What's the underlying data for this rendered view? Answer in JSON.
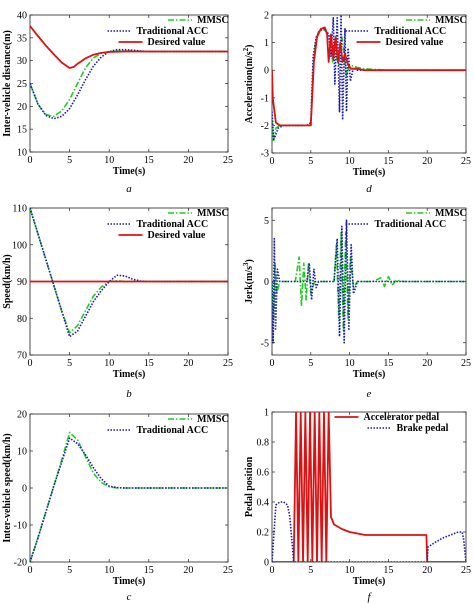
{
  "colors": {
    "mmsc": "#22cc22",
    "traditional": "#1a1aaa",
    "desired": "#dd1111",
    "accelerator": "#dd1111",
    "brake": "#1a1aaa"
  },
  "chart_data": [
    {
      "id": "a",
      "type": "line",
      "caption": "a",
      "xlabel": "Time(s)",
      "ylabel": "Inter-vehicle distance(m)",
      "xlim": [
        0,
        25
      ],
      "ylim": [
        10,
        40
      ],
      "xticks": [
        0,
        5,
        10,
        15,
        20,
        25
      ],
      "yticks": [
        10,
        15,
        20,
        25,
        30,
        35,
        40
      ],
      "legend_pos": "top-right",
      "series": [
        {
          "name": "MMSC",
          "style": "dashdot",
          "color": "#22cc22",
          "x": [
            0,
            1,
            2,
            3,
            4,
            5,
            6,
            7,
            8,
            9,
            10,
            11,
            12,
            13,
            15,
            20,
            25
          ],
          "y": [
            25,
            20.5,
            18.2,
            17.8,
            19,
            21.5,
            25,
            28.4,
            30.6,
            31.6,
            32,
            32.1,
            32.1,
            32.1,
            32,
            32,
            32
          ]
        },
        {
          "name": "Traditional ACC",
          "style": "dotted",
          "color": "#1a1aaa",
          "x": [
            0,
            1,
            2,
            3,
            4,
            5,
            6,
            7,
            8,
            9,
            10,
            11,
            12,
            13,
            14,
            15,
            20,
            25
          ],
          "y": [
            25,
            20.5,
            18,
            17.3,
            17.8,
            19.5,
            22.5,
            25.8,
            28.8,
            30.8,
            32,
            32.4,
            32.4,
            32.3,
            32.1,
            32,
            32,
            32
          ]
        },
        {
          "name": "Desired value",
          "style": "solid",
          "color": "#dd1111",
          "x": [
            0,
            1,
            2,
            3,
            4,
            5,
            5.5,
            6,
            7,
            8,
            9,
            10,
            12,
            15,
            20,
            25
          ],
          "y": [
            37.6,
            35.4,
            33.3,
            31.4,
            29.6,
            28.4,
            28.6,
            29.3,
            30.5,
            31.3,
            31.7,
            31.9,
            32,
            32,
            32,
            32
          ]
        }
      ]
    },
    {
      "id": "b",
      "type": "line",
      "caption": "b",
      "xlabel": "Time(s)",
      "ylabel": "Speed(km/h)",
      "xlim": [
        0,
        25
      ],
      "ylim": [
        70,
        110
      ],
      "xticks": [
        0,
        5,
        10,
        15,
        20,
        25
      ],
      "yticks": [
        70,
        80,
        90,
        100,
        110
      ],
      "legend_pos": "top-right",
      "series": [
        {
          "name": "MMSC",
          "style": "dashdot",
          "color": "#22cc22",
          "x": [
            0,
            1,
            2,
            3,
            4,
            5,
            6,
            7,
            8,
            9,
            10,
            11,
            12,
            15,
            20,
            25
          ],
          "y": [
            110,
            103,
            96,
            89,
            82,
            76,
            78,
            82,
            86,
            88.5,
            90,
            90.2,
            90,
            90,
            90,
            90
          ]
        },
        {
          "name": "Traditional ACC",
          "style": "dotted",
          "color": "#1a1aaa",
          "x": [
            0,
            1,
            2,
            3,
            4,
            5,
            6,
            7,
            8,
            9,
            10,
            11,
            12,
            13,
            14,
            15,
            20,
            25
          ],
          "y": [
            110,
            103,
            96,
            89,
            82,
            75,
            76.5,
            80.5,
            84.5,
            87.5,
            90,
            91.7,
            91.5,
            90.6,
            90.1,
            90,
            90,
            90
          ]
        },
        {
          "name": "Desired value",
          "style": "solid",
          "color": "#dd1111",
          "x": [
            0,
            25
          ],
          "y": [
            90,
            90
          ]
        }
      ]
    },
    {
      "id": "c",
      "type": "line",
      "caption": "c",
      "xlabel": "Time(s)",
      "ylabel": "Inter-vehicle speed(km/h)",
      "xlim": [
        0,
        25
      ],
      "ylim": [
        -20,
        20
      ],
      "xticks": [
        0,
        5,
        10,
        15,
        20,
        25
      ],
      "yticks": [
        -20,
        -10,
        0,
        10,
        20
      ],
      "legend_pos": "top-right",
      "series": [
        {
          "name": "MMSC",
          "style": "dashdot",
          "color": "#22cc22",
          "x": [
            0,
            1,
            2,
            3,
            4,
            5,
            6,
            7,
            8,
            9,
            10,
            11,
            12,
            15,
            20,
            25
          ],
          "y": [
            -20,
            -13.5,
            -6.5,
            0.5,
            7.5,
            15,
            13,
            8.5,
            4,
            1.5,
            0.3,
            0,
            0,
            0,
            0,
            0
          ]
        },
        {
          "name": "Traditional ACC",
          "style": "dotted",
          "color": "#1a1aaa",
          "x": [
            0,
            1,
            2,
            3,
            4,
            5,
            6,
            7,
            8,
            9,
            10,
            11,
            12,
            15,
            20,
            25
          ],
          "y": [
            -20,
            -13.5,
            -6.5,
            0.5,
            7,
            13.5,
            12,
            9,
            5.5,
            2.5,
            0.5,
            0.1,
            0,
            0,
            0,
            0
          ]
        }
      ]
    },
    {
      "id": "d",
      "type": "line",
      "caption": "d",
      "xlabel": "Time(s)",
      "ylabel": "Acceleration(m/s²)",
      "xlim": [
        0,
        25
      ],
      "ylim": [
        -3,
        2
      ],
      "xticks": [
        0,
        5,
        10,
        15,
        20,
        25
      ],
      "yticks": [
        -3,
        -2,
        -1,
        0,
        1,
        2
      ],
      "legend_pos": "top-right",
      "series": [
        {
          "name": "MMSC",
          "style": "dashdot",
          "color": "#22cc22",
          "x": [
            0,
            0.2,
            0.5,
            1,
            2,
            3,
            4,
            5,
            5.3,
            5.6,
            6,
            6.5,
            7,
            7.5,
            7.8,
            8,
            8.3,
            8.6,
            9,
            9.3,
            9.6,
            10,
            11,
            12,
            15,
            20,
            25
          ],
          "y": [
            -1.8,
            -2.6,
            -2.1,
            -2,
            -2,
            -2,
            -2,
            -2,
            0,
            1,
            1.4,
            1.5,
            1.4,
            1.2,
            0.3,
            1,
            0.5,
            0.2,
            1.2,
            0.6,
            -0.2,
            0.2,
            0.1,
            0.05,
            0,
            0,
            0
          ]
        },
        {
          "name": "Traditional ACC",
          "style": "dotted",
          "color": "#1a1aaa",
          "x": [
            0,
            0.2,
            0.4,
            0.8,
            1.5,
            2.5,
            3.5,
            4.5,
            5,
            5.3,
            5.7,
            6.2,
            6.8,
            7.3,
            7.6,
            7.9,
            8.1,
            8.4,
            8.7,
            8.9,
            9.1,
            9.4,
            9.6,
            9.8,
            10.1,
            10.5,
            11,
            12,
            15,
            20,
            25
          ],
          "y": [
            -1.5,
            -2.5,
            -2.4,
            -2.1,
            -2,
            -2,
            -2,
            -2,
            -1.9,
            0.5,
            1.2,
            1.45,
            1.5,
            1.3,
            0.5,
            1.9,
            -0.5,
            1.9,
            -1.5,
            2,
            -1.8,
            1.5,
            -1.5,
            0.8,
            -0.4,
            0.1,
            0,
            0,
            0,
            0,
            0
          ]
        },
        {
          "name": "Desired value",
          "style": "solid",
          "color": "#dd1111",
          "x": [
            0,
            0.1,
            0.5,
            1,
            2,
            3,
            4,
            5,
            5.4,
            5.8,
            6.3,
            6.8,
            7.1,
            7.3,
            7.6,
            7.9,
            8.2,
            8.5,
            8.8,
            9.1,
            9.4,
            9.8,
            10.2,
            11,
            12,
            15,
            20,
            25
          ],
          "y": [
            0,
            -1,
            -1.9,
            -2,
            -2,
            -2,
            -2,
            -2,
            0.3,
            1.2,
            1.5,
            1.55,
            1.3,
            0.3,
            1.3,
            0.4,
            1.2,
            0.3,
            1,
            0.3,
            0.6,
            0.2,
            0.05,
            0.05,
            0,
            0,
            0,
            0
          ]
        }
      ]
    },
    {
      "id": "e",
      "type": "line",
      "caption": "e",
      "xlabel": "Time(s)",
      "ylabel": "Jerk(m/s³)",
      "xlim": [
        0,
        25
      ],
      "ylim": [
        -6,
        6
      ],
      "xticks": [
        0,
        5,
        10,
        15,
        20,
        25
      ],
      "yticks": [
        -5,
        0,
        5
      ],
      "legend_pos": "top-right",
      "series": [
        {
          "name": "MMSC",
          "style": "dashdot",
          "color": "#22cc22",
          "x": [
            0,
            0.2,
            0.4,
            0.6,
            1,
            2,
            3,
            3.5,
            3.8,
            4.1,
            4.4,
            4.7,
            5,
            5.5,
            6,
            7,
            7.5,
            8,
            8.3,
            8.6,
            8.9,
            9.2,
            9.5,
            9.8,
            10.1,
            10.5,
            11,
            13,
            14,
            14.5,
            15,
            15.5,
            16,
            17,
            20,
            25
          ],
          "y": [
            0,
            -3,
            1.5,
            -1,
            0,
            0,
            0,
            2,
            -2,
            1.5,
            -1.5,
            1.5,
            -1,
            0,
            0,
            0,
            0,
            0,
            3,
            -3,
            4,
            -4,
            4,
            -3,
            2,
            -0.5,
            0,
            0,
            0.3,
            -0.4,
            0.4,
            -0.3,
            0.1,
            0,
            0,
            0
          ]
        },
        {
          "name": "Traditional ACC",
          "style": "dotted",
          "color": "#1a1aaa",
          "x": [
            0,
            0.15,
            0.3,
            0.45,
            0.7,
            1,
            2,
            3,
            4,
            4.5,
            4.8,
            5.1,
            5.4,
            5.7,
            6,
            7,
            7.5,
            8,
            8.4,
            8.7,
            9,
            9.3,
            9.6,
            9.9,
            10.2,
            10.5,
            11,
            12,
            15,
            20,
            25
          ],
          "y": [
            0,
            -5,
            3.5,
            -4,
            1,
            0,
            0,
            0,
            0,
            0,
            1.5,
            -1.5,
            1,
            -0.5,
            0,
            0,
            0,
            0,
            3.5,
            -4.5,
            4.5,
            -5,
            5,
            -4,
            3,
            -1,
            0,
            0,
            0,
            0,
            0
          ]
        }
      ]
    },
    {
      "id": "f",
      "type": "line",
      "caption": "f",
      "xlabel": "Time(s)",
      "ylabel": "Pedal position",
      "xlim": [
        0,
        25
      ],
      "ylim": [
        0,
        1
      ],
      "xticks": [
        0,
        5,
        10,
        15,
        20,
        25
      ],
      "yticks": [
        0,
        0.2,
        0.4,
        0.6,
        0.8,
        1
      ],
      "legend_pos": "top-right",
      "series": [
        {
          "name": "Accelerator pedal",
          "style": "solid",
          "color": "#dd1111",
          "x": [
            0,
            2.8,
            3.1,
            3.4,
            3.7,
            4,
            4.3,
            4.6,
            4.9,
            5.2,
            5.5,
            5.8,
            6.1,
            6.4,
            6.7,
            7,
            7.3,
            7.6,
            8,
            9,
            10,
            11,
            12,
            15,
            19.9,
            20,
            25
          ],
          "y": [
            0,
            0,
            1,
            0,
            1,
            0,
            1,
            0,
            1,
            0,
            1,
            0,
            1,
            0,
            1,
            0,
            1,
            0.3,
            0.25,
            0.22,
            0.2,
            0.19,
            0.18,
            0.18,
            0.18,
            0,
            0
          ]
        },
        {
          "name": "Brake pedal",
          "style": "dotted",
          "color": "#1a1aaa",
          "x": [
            0,
            0.5,
            1,
            1.5,
            2,
            2.3,
            2.8,
            20,
            20.1,
            21,
            22,
            23,
            24,
            24.5,
            24.7,
            25
          ],
          "y": [
            0,
            0.38,
            0.4,
            0.4,
            0.38,
            0.3,
            0,
            0,
            0.1,
            0.13,
            0.16,
            0.18,
            0.2,
            0.2,
            0.15,
            0
          ]
        }
      ]
    }
  ]
}
